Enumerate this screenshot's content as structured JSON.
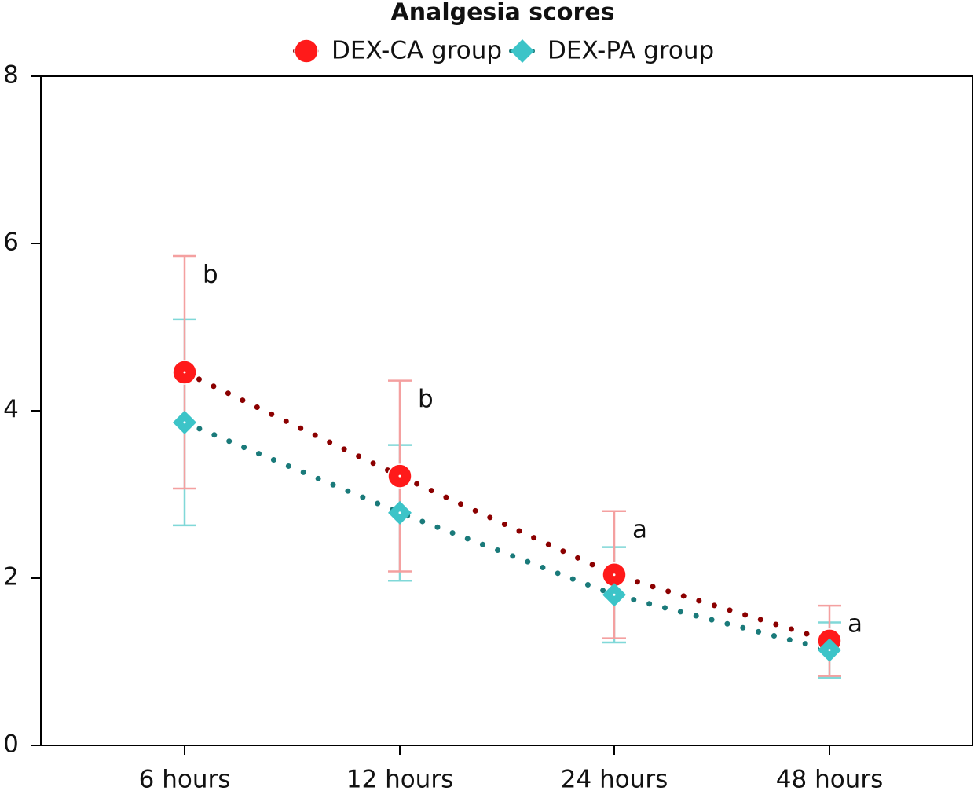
{
  "chart_data": {
    "type": "line",
    "title": "Analgesia scores",
    "categories": [
      "6 hours",
      "12 hours",
      "24 hours",
      "48 hours"
    ],
    "series": [
      {
        "name": "DEX-CA group",
        "color": "#ff1a1a",
        "line_color": "#8b0000",
        "error_color": "#f4a0a0",
        "marker": "circle",
        "values": [
          4.46,
          3.22,
          2.04,
          1.25
        ],
        "errors": [
          1.39,
          1.14,
          0.76,
          0.42
        ]
      },
      {
        "name": "DEX-PA group",
        "color": "#3cc4c8",
        "line_color": "#1a7a7a",
        "error_color": "#80d8d8",
        "marker": "diamond",
        "values": [
          3.86,
          2.78,
          1.8,
          1.14
        ],
        "errors": [
          1.23,
          0.81,
          0.57,
          0.33
        ]
      }
    ],
    "annotations": [
      "b",
      "b",
      "a",
      "a"
    ],
    "ylim": [
      0,
      8
    ],
    "yticks": [
      0,
      2,
      4,
      6,
      8
    ]
  }
}
